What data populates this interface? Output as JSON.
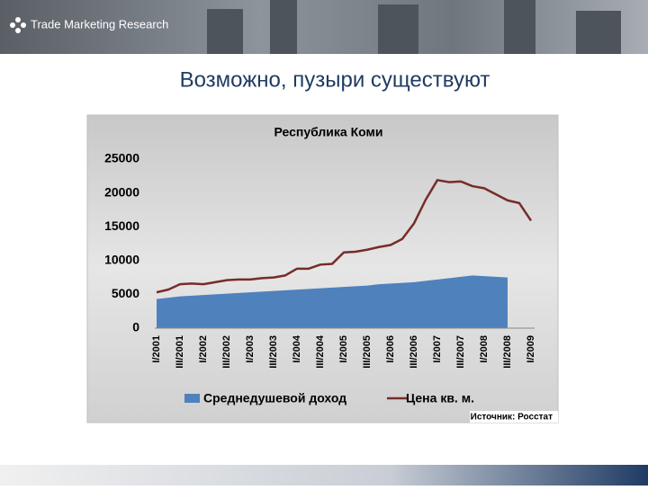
{
  "header": {
    "logo": "Trade Marketing Research"
  },
  "title": "Возможно, пузыри существуют",
  "chart_data": {
    "type": "line",
    "title": "Республика Коми",
    "categories": [
      "I/2001",
      null,
      "III/2001",
      null,
      "I/2002",
      null,
      "III/2002",
      null,
      "I/2003",
      null,
      "III/2003",
      null,
      "I/2004",
      null,
      "III/2004",
      null,
      "I/2005",
      null,
      "III/2005",
      null,
      "I/2006",
      null,
      "III/2006",
      null,
      "I/2007",
      null,
      "III/2007",
      null,
      "I/2008",
      null,
      "III/2008",
      null,
      "I/2009"
    ],
    "series": [
      {
        "name": "Среднедушевой доход",
        "kind": "area",
        "color": "#4f81bd",
        "values": [
          4300,
          4500,
          4700,
          4800,
          4900,
          5000,
          5100,
          5200,
          5300,
          5400,
          5500,
          5600,
          5700,
          5800,
          5900,
          6000,
          6100,
          6200,
          6300,
          6500,
          6600,
          6700,
          6800,
          7000,
          7200,
          7400,
          7600,
          7800,
          7700,
          7600,
          7500,
          null,
          null
        ]
      },
      {
        "name": "Цена кв. м.",
        "kind": "line",
        "color": "#772c2a",
        "values": [
          5300,
          5700,
          6500,
          6600,
          6500,
          6800,
          7100,
          7200,
          7200,
          7400,
          7500,
          7800,
          8800,
          8800,
          9400,
          9500,
          11200,
          11300,
          11600,
          12000,
          12300,
          13200,
          15500,
          19000,
          21900,
          21600,
          21700,
          21000,
          20700,
          19800,
          18900,
          18500,
          15900
        ]
      }
    ],
    "ylim": [
      0,
      25000
    ],
    "yticks": [
      0,
      5000,
      10000,
      15000,
      20000,
      25000
    ],
    "grid": false,
    "legend": "bottom",
    "source": "Источник: Росстат"
  }
}
